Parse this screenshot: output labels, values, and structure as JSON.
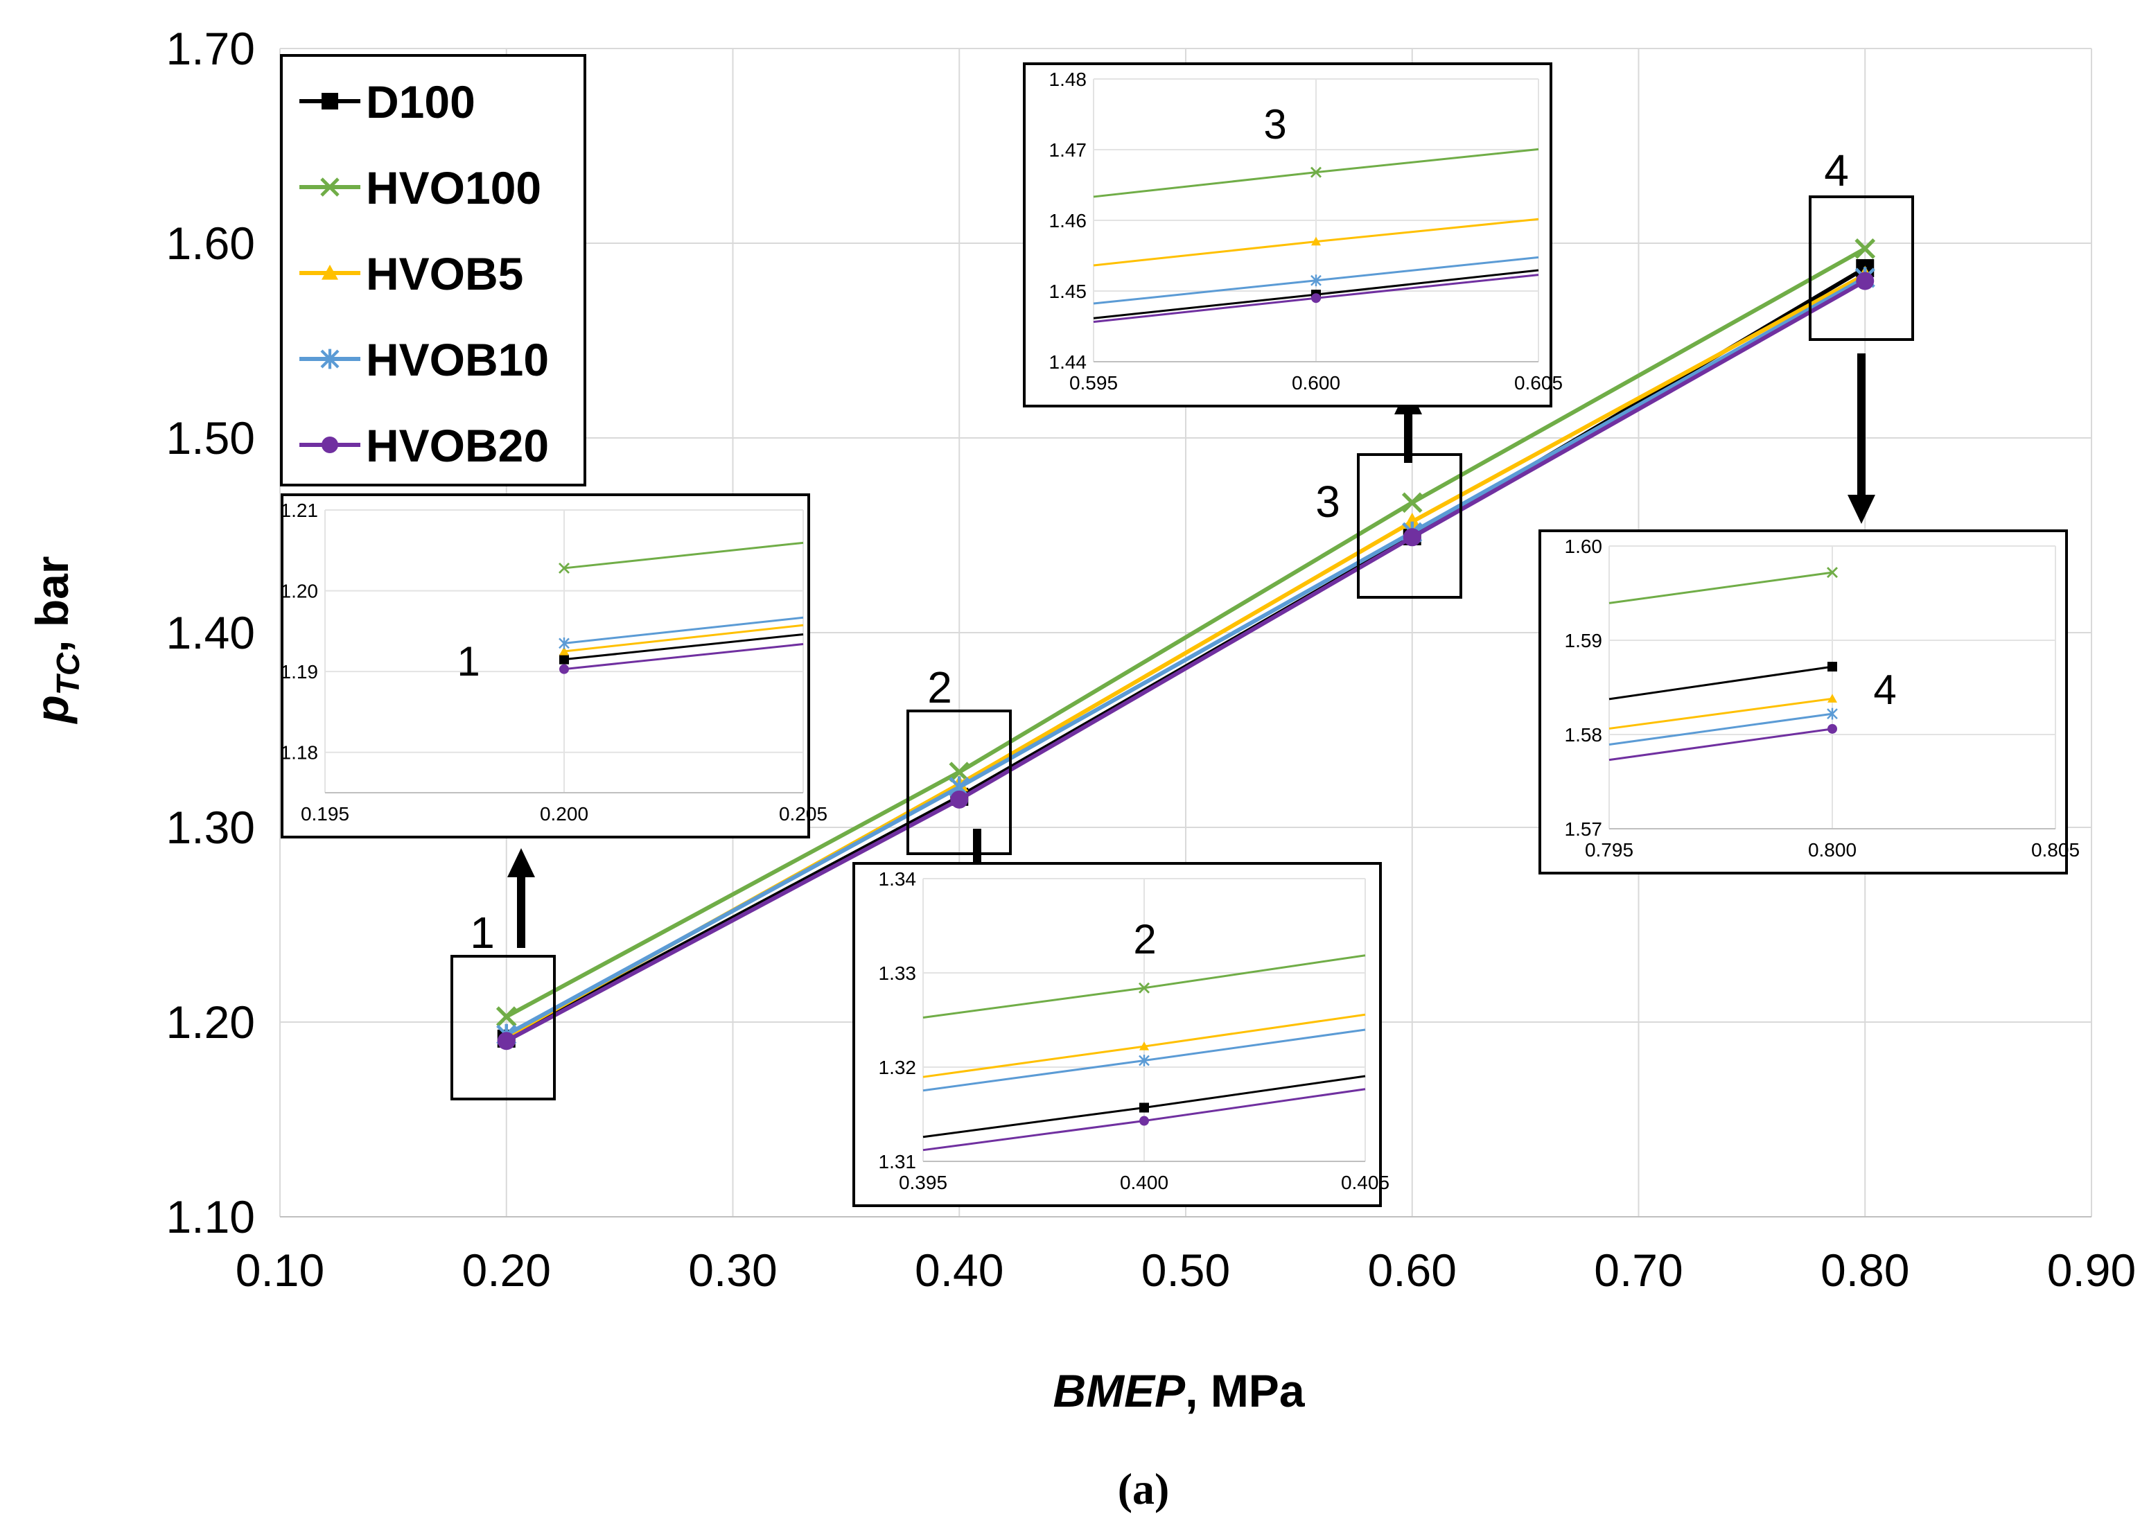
{
  "chart_data": {
    "type": "line",
    "title": "",
    "caption": "(a)",
    "xlabel": {
      "italic": "BMEP",
      "rest": ", MPa"
    },
    "ylabel": {
      "main": "p",
      "sub": "TC",
      "rest": ", bar"
    },
    "xlim": [
      0.1,
      0.9
    ],
    "ylim": [
      1.1,
      1.7
    ],
    "xticks": [
      "0.10",
      "0.20",
      "0.30",
      "0.40",
      "0.50",
      "0.60",
      "0.70",
      "0.80",
      "0.90"
    ],
    "yticks": [
      "1.10",
      "1.20",
      "1.30",
      "1.40",
      "1.50",
      "1.60",
      "1.70"
    ],
    "grid": true,
    "legend_position": "top-left",
    "x": [
      0.2,
      0.4,
      0.6,
      0.8
    ],
    "series": [
      {
        "name": "D100",
        "color": "#000000",
        "marker": "square",
        "values": [
          1.1915,
          1.3157,
          1.4495,
          1.5872
        ]
      },
      {
        "name": "HVO100",
        "color": "#70AD47",
        "marker": "x",
        "values": [
          1.2028,
          1.3284,
          1.4668,
          1.5972
        ]
      },
      {
        "name": "HVOB5",
        "color": "#FFC000",
        "marker": "triangle",
        "values": [
          1.1925,
          1.3222,
          1.457,
          1.5838
        ]
      },
      {
        "name": "HVOB10",
        "color": "#5B9BD5",
        "marker": "star",
        "values": [
          1.1935,
          1.3207,
          1.4515,
          1.5822
        ]
      },
      {
        "name": "HVOB20",
        "color": "#7030A0",
        "marker": "circle",
        "values": [
          1.1903,
          1.3143,
          1.449,
          1.5806
        ]
      }
    ],
    "zoom_boxes": [
      {
        "label": "1",
        "at_x": 0.2
      },
      {
        "label": "2",
        "at_x": 0.4
      },
      {
        "label": "3",
        "at_x": 0.6
      },
      {
        "label": "4",
        "at_x": 0.8
      }
    ],
    "insets": [
      {
        "label": "1",
        "xlim": [
          0.195,
          0.205
        ],
        "ylim": [
          1.175,
          1.21
        ],
        "xticks": [
          "0.195",
          "0.200",
          "0.205"
        ],
        "yticks": [
          "1.18",
          "1.19",
          "1.20",
          "1.21"
        ],
        "center_x": 0.2
      },
      {
        "label": "2",
        "xlim": [
          0.395,
          0.405
        ],
        "ylim": [
          1.31,
          1.34
        ],
        "xticks": [
          "0.395",
          "0.400",
          "0.405"
        ],
        "yticks": [
          "1.31",
          "1.32",
          "1.33",
          "1.34"
        ],
        "center_x": 0.4
      },
      {
        "label": "3",
        "xlim": [
          0.595,
          0.605
        ],
        "ylim": [
          1.44,
          1.48
        ],
        "xticks": [
          "0.595",
          "0.600",
          "0.605"
        ],
        "yticks": [
          "1.44",
          "1.45",
          "1.46",
          "1.47",
          "1.48"
        ],
        "center_x": 0.6
      },
      {
        "label": "4",
        "xlim": [
          0.795,
          0.805
        ],
        "ylim": [
          1.57,
          1.6
        ],
        "xticks": [
          "0.795",
          "0.800",
          "0.805"
        ],
        "yticks": [
          "1.57",
          "1.58",
          "1.59",
          "1.60"
        ],
        "center_x": 0.8
      }
    ]
  }
}
